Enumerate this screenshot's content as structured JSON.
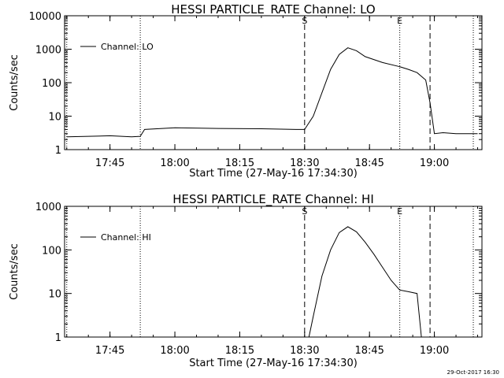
{
  "footer": {
    "timestamp": "29-Oct-2017 16:30"
  },
  "chart_data": [
    {
      "type": "line",
      "title": "HESSI PARTICLE_RATE Channel: LO",
      "xlabel": "Start Time (27-May-16 17:34:30)",
      "ylabel": "Counts/sec",
      "yscale": "log",
      "xlim": [
        "17:34:30",
        "19:11:00"
      ],
      "ylim": [
        1,
        10000
      ],
      "xticks": [
        "17:45",
        "18:00",
        "18:15",
        "18:30",
        "18:45",
        "19:00"
      ],
      "yticks": [
        "1",
        "10",
        "100",
        "1000",
        "10000"
      ],
      "grid": false,
      "legend_position": "top-left",
      "series": [
        {
          "name": "Channel: LO",
          "x": [
            "17:35",
            "17:40",
            "17:45",
            "17:50",
            "17:52",
            "17:53",
            "18:00",
            "18:10",
            "18:20",
            "18:28",
            "18:30",
            "18:32",
            "18:34",
            "18:36",
            "18:38",
            "18:40",
            "18:42",
            "18:44",
            "18:48",
            "18:52",
            "18:54",
            "18:56",
            "18:58",
            "18:59",
            "19:00",
            "19:02",
            "19:05",
            "19:10"
          ],
          "y": [
            2.4,
            2.5,
            2.6,
            2.4,
            2.5,
            4,
            4.5,
            4.3,
            4.2,
            4,
            4,
            10,
            50,
            250,
            700,
            1100,
            900,
            600,
            400,
            300,
            250,
            200,
            120,
            25,
            3,
            3.2,
            3,
            3
          ]
        }
      ],
      "markers": [
        {
          "label": "",
          "time": "17:35",
          "style": "dotted"
        },
        {
          "label": "",
          "time": "17:52",
          "style": "dotted"
        },
        {
          "label": "S",
          "time": "18:30",
          "style": "dashed"
        },
        {
          "label": "E",
          "time": "18:52",
          "style": "dotted"
        },
        {
          "label": "",
          "time": "18:59",
          "style": "dashed"
        },
        {
          "label": "",
          "time": "19:09",
          "style": "dotted"
        }
      ]
    },
    {
      "type": "line",
      "title": "HESSI PARTICLE_RATE Channel: HI",
      "xlabel": "Start Time (27-May-16 17:34:30)",
      "ylabel": "Counts/sec",
      "yscale": "log",
      "xlim": [
        "17:34:30",
        "19:11:00"
      ],
      "ylim": [
        1,
        1000
      ],
      "xticks": [
        "17:45",
        "18:00",
        "18:15",
        "18:30",
        "18:45",
        "19:00"
      ],
      "yticks": [
        "1",
        "10",
        "100",
        "1000"
      ],
      "grid": false,
      "legend_position": "top-left",
      "series": [
        {
          "name": "Channel: HI",
          "x": [
            "18:31",
            "18:32",
            "18:34",
            "18:36",
            "18:38",
            "18:40",
            "18:42",
            "18:44",
            "18:46",
            "18:48",
            "18:50",
            "18:52",
            "18:54",
            "18:56",
            "18:57"
          ],
          "y": [
            1,
            3,
            25,
            100,
            250,
            340,
            260,
            150,
            80,
            40,
            20,
            12,
            11,
            10,
            1
          ]
        }
      ],
      "markers": [
        {
          "label": "",
          "time": "17:35",
          "style": "dotted"
        },
        {
          "label": "",
          "time": "17:52",
          "style": "dotted"
        },
        {
          "label": "S",
          "time": "18:30",
          "style": "dashed"
        },
        {
          "label": "E",
          "time": "18:52",
          "style": "dotted"
        },
        {
          "label": "",
          "time": "18:59",
          "style": "dashed"
        },
        {
          "label": "",
          "time": "19:09",
          "style": "dotted"
        }
      ]
    }
  ]
}
